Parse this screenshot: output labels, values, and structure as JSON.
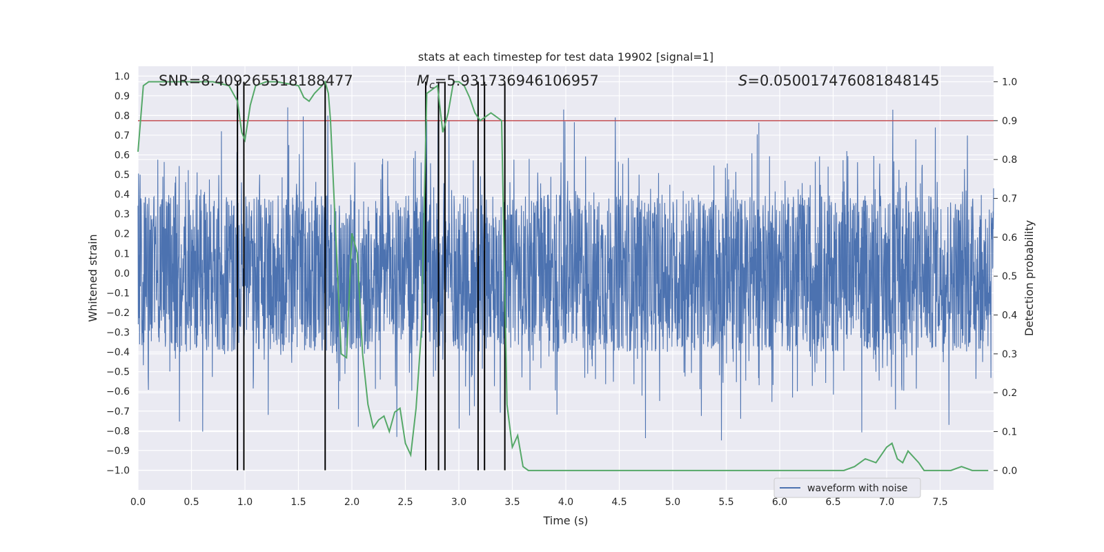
{
  "chart_data": {
    "type": "line",
    "title": "stats at each timestep for test data 19902 [signal=1]",
    "xlabel": "Time (s)",
    "ylabel": "Whitened strain",
    "ylabel_right": "Detection probability",
    "xlim": [
      0,
      8
    ],
    "ylim": [
      -1.1,
      1.05
    ],
    "ylim_right": [
      -0.05,
      1.04
    ],
    "xticks": [
      "0.0",
      "0.5",
      "1.0",
      "1.5",
      "2.0",
      "2.5",
      "3.0",
      "3.5",
      "4.0",
      "4.5",
      "5.0",
      "5.5",
      "6.0",
      "6.5",
      "7.0",
      "7.5"
    ],
    "yticks": [
      "-1.0",
      "-0.9",
      "-0.8",
      "-0.7",
      "-0.6",
      "-0.5",
      "-0.4",
      "-0.3",
      "-0.2",
      "-0.1",
      "0.0",
      "0.1",
      "0.2",
      "0.3",
      "0.4",
      "0.5",
      "0.6",
      "0.7",
      "0.8",
      "0.9",
      "1.0"
    ],
    "yticks_right": [
      "0.0",
      "0.1",
      "0.2",
      "0.3",
      "0.4",
      "0.5",
      "0.6",
      "0.7",
      "0.8",
      "0.9",
      "1.0"
    ],
    "grid": true,
    "legend": {
      "position": "lower-right",
      "entries": [
        "waveform with noise"
      ]
    },
    "annotations": {
      "snr": "SNR=8.409265518188477",
      "mc_symbol": "M",
      "mc_sub": "c",
      "mc_value": "=5.931736946106957",
      "s_symbol": "S",
      "s_value": "=0.050017476081848145"
    },
    "threshold": {
      "value": 0.9,
      "axis": "right",
      "color": "#c44e52"
    },
    "vertical_markers": [
      0.93,
      0.99,
      1.75,
      2.69,
      2.81,
      2.87,
      3.18,
      3.24,
      3.43
    ],
    "series": [
      {
        "name": "waveform with noise",
        "color": "#4c72b0",
        "axis": "left",
        "style": "dense-noise",
        "amplitude": 0.4,
        "peak_max": 0.93,
        "peak_min": -1.0
      },
      {
        "color": "#55a868",
        "axis": "right",
        "x": [
          0.0,
          0.05,
          0.1,
          0.2,
          0.4,
          0.6,
          0.7,
          0.85,
          0.93,
          0.97,
          1.0,
          1.05,
          1.1,
          1.2,
          1.3,
          1.5,
          1.55,
          1.6,
          1.65,
          1.72,
          1.75,
          1.78,
          1.8,
          1.85,
          1.9,
          1.95,
          2.0,
          2.05,
          2.1,
          2.15,
          2.2,
          2.25,
          2.3,
          2.35,
          2.4,
          2.45,
          2.5,
          2.55,
          2.6,
          2.65,
          2.7,
          2.75,
          2.8,
          2.85,
          2.9,
          2.95,
          3.0,
          3.05,
          3.1,
          3.15,
          3.2,
          3.25,
          3.3,
          3.35,
          3.4,
          3.45,
          3.5,
          3.55,
          3.6,
          3.65,
          3.7,
          3.75,
          3.8,
          3.9,
          4.0,
          4.1,
          4.3,
          4.5,
          4.7,
          5.0,
          5.5,
          5.8,
          5.9,
          6.0,
          6.5,
          6.6,
          6.7,
          6.8,
          6.9,
          7.0,
          7.05,
          7.1,
          7.15,
          7.2,
          7.3,
          7.35,
          7.4,
          7.5,
          7.6,
          7.7,
          7.8,
          7.95
        ],
        "y": [
          0.82,
          0.99,
          1.0,
          1.0,
          1.0,
          1.0,
          1.0,
          0.99,
          0.95,
          0.87,
          0.85,
          0.94,
          0.99,
          1.0,
          1.0,
          0.99,
          0.96,
          0.95,
          0.97,
          0.99,
          1.0,
          0.97,
          0.9,
          0.6,
          0.3,
          0.29,
          0.61,
          0.56,
          0.3,
          0.17,
          0.11,
          0.13,
          0.14,
          0.1,
          0.15,
          0.16,
          0.07,
          0.04,
          0.16,
          0.36,
          0.97,
          0.98,
          0.99,
          0.87,
          0.92,
          1.0,
          1.0,
          0.99,
          0.96,
          0.92,
          0.9,
          0.91,
          0.92,
          0.91,
          0.9,
          0.17,
          0.06,
          0.09,
          0.01,
          0.0,
          0.0,
          0.0,
          0.0,
          0.0,
          0.0,
          0.0,
          0.0,
          0.0,
          0.0,
          0.0,
          0.0,
          0.0,
          0.0,
          0.0,
          0.0,
          0.0,
          0.01,
          0.03,
          0.02,
          0.06,
          0.07,
          0.03,
          0.02,
          0.05,
          0.02,
          0.0,
          0.0,
          0.0,
          0.0,
          0.01,
          0.0,
          0.0
        ]
      }
    ]
  }
}
